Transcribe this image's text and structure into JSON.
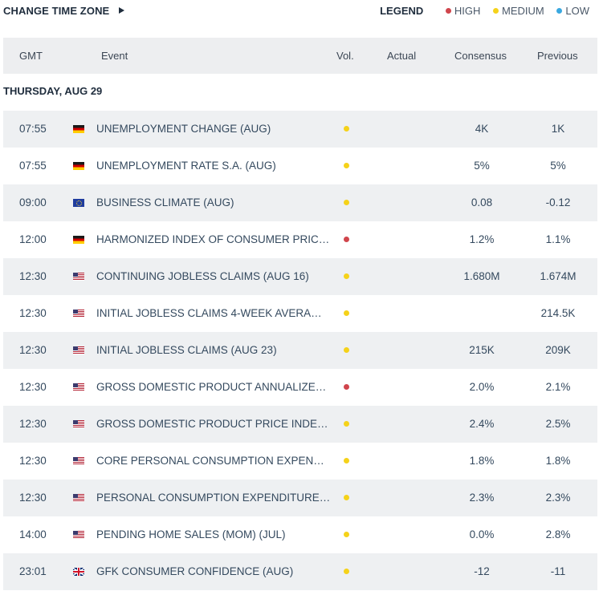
{
  "toolbar": {
    "change_tz_label": "CHANGE TIME ZONE",
    "legend_title": "LEGEND",
    "legend": [
      {
        "label": "HIGH",
        "color": "#d0454c"
      },
      {
        "label": "MEDIUM",
        "color": "#f5d21a"
      },
      {
        "label": "LOW",
        "color": "#3aa8e0"
      }
    ]
  },
  "table": {
    "headers": {
      "time": "GMT",
      "event": "Event",
      "vol": "Vol.",
      "actual": "Actual",
      "consensus": "Consensus",
      "previous": "Previous"
    },
    "date_label": "THURSDAY, AUG 29",
    "rows": [
      {
        "time": "07:55",
        "flag": "de",
        "event": "UNEMPLOYMENT CHANGE (AUG)",
        "vol": "medium",
        "actual": "",
        "consensus": "4K",
        "previous": "1K"
      },
      {
        "time": "07:55",
        "flag": "de",
        "event": "UNEMPLOYMENT RATE S.A. (AUG)",
        "vol": "medium",
        "actual": "",
        "consensus": "5%",
        "previous": "5%"
      },
      {
        "time": "09:00",
        "flag": "eu",
        "event": "BUSINESS CLIMATE (AUG)",
        "vol": "medium",
        "actual": "",
        "consensus": "0.08",
        "previous": "-0.12"
      },
      {
        "time": "12:00",
        "flag": "de",
        "event": "HARMONIZED INDEX OF CONSUMER PRIC…",
        "vol": "high",
        "actual": "",
        "consensus": "1.2%",
        "previous": "1.1%"
      },
      {
        "time": "12:30",
        "flag": "us",
        "event": "CONTINUING JOBLESS CLAIMS (AUG 16)",
        "vol": "medium",
        "actual": "",
        "consensus": "1.680M",
        "previous": "1.674M"
      },
      {
        "time": "12:30",
        "flag": "us",
        "event": "INITIAL JOBLESS CLAIMS 4-WEEK AVERA…",
        "vol": "medium",
        "actual": "",
        "consensus": "",
        "previous": "214.5K"
      },
      {
        "time": "12:30",
        "flag": "us",
        "event": "INITIAL JOBLESS CLAIMS (AUG 23)",
        "vol": "medium",
        "actual": "",
        "consensus": "215K",
        "previous": "209K"
      },
      {
        "time": "12:30",
        "flag": "us",
        "event": "GROSS DOMESTIC PRODUCT ANNUALIZE…",
        "vol": "high",
        "actual": "",
        "consensus": "2.0%",
        "previous": "2.1%"
      },
      {
        "time": "12:30",
        "flag": "us",
        "event": "GROSS DOMESTIC PRODUCT PRICE INDEX…",
        "vol": "medium",
        "actual": "",
        "consensus": "2.4%",
        "previous": "2.5%"
      },
      {
        "time": "12:30",
        "flag": "us",
        "event": "CORE PERSONAL CONSUMPTION EXPEND…",
        "vol": "medium",
        "actual": "",
        "consensus": "1.8%",
        "previous": "1.8%"
      },
      {
        "time": "12:30",
        "flag": "us",
        "event": "PERSONAL CONSUMPTION EXPENDITURE…",
        "vol": "medium",
        "actual": "",
        "consensus": "2.3%",
        "previous": "2.3%"
      },
      {
        "time": "14:00",
        "flag": "us",
        "event": "PENDING HOME SALES (MOM) (JUL)",
        "vol": "medium",
        "actual": "",
        "consensus": "0.0%",
        "previous": "2.8%"
      },
      {
        "time": "23:01",
        "flag": "gb",
        "event": "GFK CONSUMER CONFIDENCE (AUG)",
        "vol": "medium",
        "actual": "",
        "consensus": "-12",
        "previous": "-11"
      }
    ]
  },
  "volatility_colors": {
    "high": "#d0454c",
    "medium": "#f5d21a",
    "low": "#3aa8e0"
  }
}
